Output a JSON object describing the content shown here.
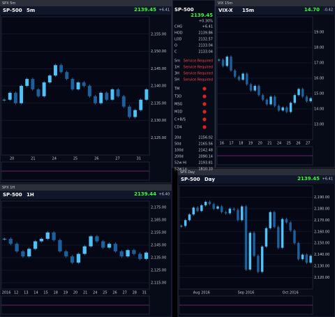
{
  "panels": [
    {
      "tab": "SPX 5m",
      "symbol": "SP-500",
      "interval": "5m",
      "price": "2139.45",
      "change": "+6.41",
      "ylim": [
        2120,
        2160
      ],
      "yticks": [
        {
          "value": 2155,
          "label": "2,155.00"
        },
        {
          "value": 2150,
          "label": "2,150.00"
        },
        {
          "value": 2145,
          "label": "2,145.00"
        },
        {
          "value": 2140,
          "label": "2,140.00"
        },
        {
          "value": 2135,
          "label": "2,135.00"
        },
        {
          "value": 2130,
          "label": "2,130.00"
        },
        {
          "value": 2125,
          "label": "2,125.00"
        }
      ],
      "xlabels": [
        "20",
        "21",
        "24",
        "25",
        "26",
        "27",
        "31"
      ],
      "closes": [
        2136,
        2138,
        2135,
        2140,
        2142,
        2139,
        2137,
        2141,
        2143,
        2146,
        2144,
        2142,
        2139,
        2141,
        2140,
        2137,
        2135,
        2138,
        2136,
        2139,
        2137,
        2134,
        2131,
        2133,
        2136,
        2139
      ]
    },
    {
      "tab": "VIX 15m",
      "symbol": "VIX-X",
      "interval": "15m",
      "price": "14.70",
      "change": "-0.42",
      "ylim": [
        12,
        20
      ],
      "yticks": [
        {
          "value": 19,
          "label": "19.00"
        },
        {
          "value": 18,
          "label": "18.00"
        },
        {
          "value": 17,
          "label": "17.00"
        },
        {
          "value": 16,
          "label": "16.00"
        },
        {
          "value": 15,
          "label": "15.00"
        },
        {
          "value": 14,
          "label": "14.00"
        },
        {
          "value": 13,
          "label": "13.00"
        }
      ],
      "xlabels": [
        "16",
        "17",
        "18",
        "19",
        "20",
        "21",
        "24",
        "25",
        "26",
        "27"
      ],
      "closes": [
        17.2,
        16.8,
        17.4,
        16.5,
        16.1,
        15.9,
        16.3,
        15.6,
        15.2,
        15.5,
        14.9,
        14.6,
        14.3,
        14.8,
        14.2,
        13.9,
        14.1,
        13.8,
        14.4,
        14.9,
        15.3,
        14.8,
        14.5,
        14.7
      ]
    },
    {
      "tab": "SPX 1H",
      "symbol": "SP-500",
      "interval": "1H",
      "price": "2139.44",
      "change": "+6.40",
      "ylim": [
        2110,
        2180
      ],
      "yticks": [
        {
          "value": 2175,
          "label": "2,175.00"
        },
        {
          "value": 2165,
          "label": "2,165.00"
        },
        {
          "value": 2155,
          "label": "2,155.00"
        },
        {
          "value": 2145,
          "label": "2,145.00"
        },
        {
          "value": 2135,
          "label": "2,135.00"
        },
        {
          "value": 2125,
          "label": "2,125.00"
        },
        {
          "value": 2115,
          "label": "2,115.00"
        }
      ],
      "xlabels": [
        "2016",
        "12",
        "13",
        "14",
        "15",
        "18",
        "19",
        "20",
        "21",
        "24",
        "25",
        "26",
        "27",
        "28",
        "31"
      ],
      "closes": [
        2150,
        2146,
        2140,
        2136,
        2142,
        2148,
        2150,
        2155,
        2149,
        2140,
        2136,
        2131,
        2138,
        2144,
        2152,
        2148,
        2143,
        2146,
        2140,
        2136,
        2141,
        2138,
        2134,
        2139
      ]
    },
    {
      "tab": "SPX Day",
      "symbol": "SP-500",
      "interval": "Day",
      "price": "2139.45",
      "change": "+6.41",
      "ylim": [
        2110,
        2200
      ],
      "yticks": [
        {
          "value": 2190,
          "label": "2,190.00"
        },
        {
          "value": 2180,
          "label": "2,180.00"
        },
        {
          "value": 2170,
          "label": "2,170.00"
        },
        {
          "value": 2160,
          "label": "2,160.00"
        },
        {
          "value": 2150,
          "label": "2,150.00"
        },
        {
          "value": 2140,
          "label": "2,140.00"
        },
        {
          "value": 2130,
          "label": "2,130.00"
        },
        {
          "value": 2120,
          "label": "2,120.00"
        }
      ],
      "xlabels": [
        "Aug 2016",
        "Sep 2016",
        "Oct 2016"
      ],
      "closes": [
        2165,
        2170,
        2175,
        2181,
        2178,
        2183,
        2186,
        2184,
        2180,
        2182,
        2177,
        2176,
        2180,
        2179,
        2170,
        2182,
        2127,
        2159,
        2139,
        2125,
        2147,
        2163,
        2177,
        2164,
        2146,
        2171,
        2168,
        2161,
        2150,
        2136,
        2140,
        2133,
        2139
      ]
    }
  ],
  "quote": {
    "symbol": "SP-500",
    "price": "2139.45",
    "pct": "+0.30%",
    "rows": [
      {
        "label": "CHG",
        "value": "+6.41"
      },
      {
        "label": "HOD",
        "value": "2139.86"
      },
      {
        "label": "LOD",
        "value": "2132.57"
      },
      {
        "label": "O",
        "value": "2133.04"
      },
      {
        "label": "C",
        "value": "2133.04"
      }
    ],
    "status": [
      {
        "label": "5m",
        "value": "Service Required"
      },
      {
        "label": "1H",
        "value": "Service Required"
      },
      {
        "label": "3H",
        "value": "Service Required"
      },
      {
        "label": "5H",
        "value": "Service Required"
      }
    ],
    "signals": [
      "TM",
      "T3D",
      "MSG",
      "M3D",
      "C+B/S",
      "CD4"
    ],
    "levels": [
      {
        "label": "20d",
        "value": "2156.02"
      },
      {
        "label": "50d",
        "value": "2165.56"
      },
      {
        "label": "100d",
        "value": "2142.48"
      },
      {
        "label": "200d",
        "value": "2090.14"
      },
      {
        "label": "52w Hi",
        "value": "2193.81"
      },
      {
        "label": "52w Lo",
        "value": "1810.10"
      }
    ]
  }
}
